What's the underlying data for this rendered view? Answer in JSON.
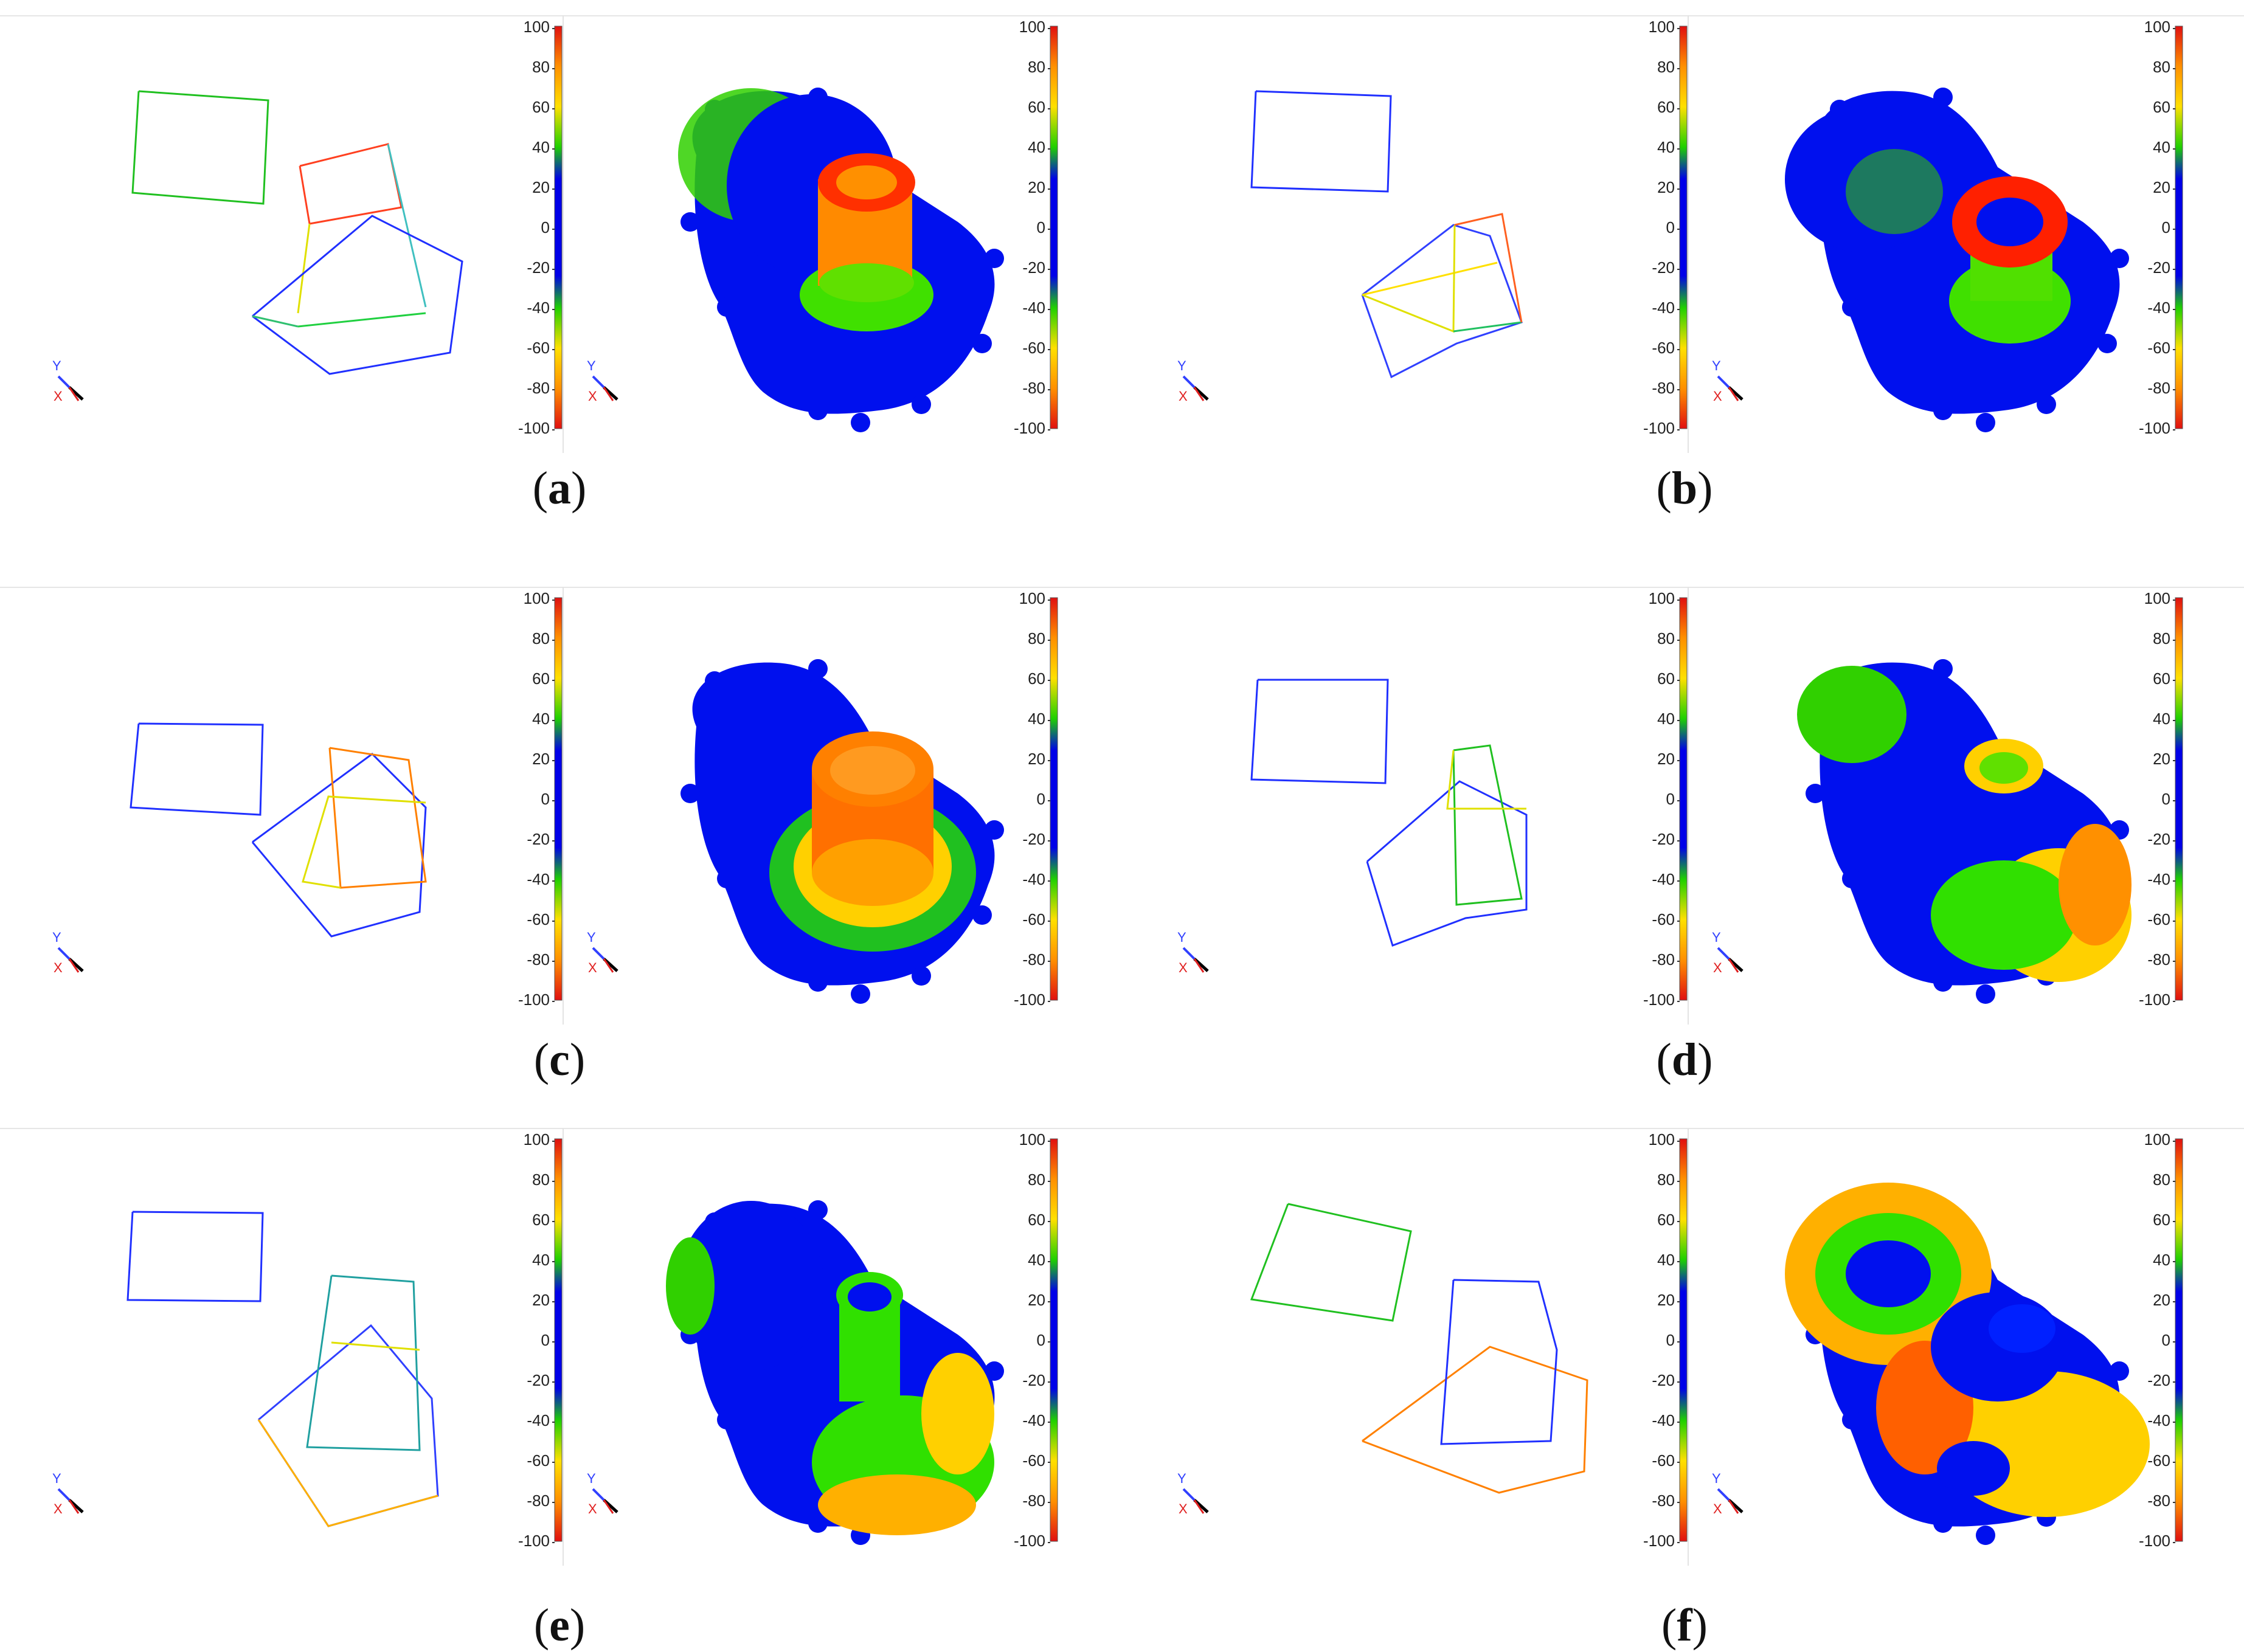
{
  "colorbar": {
    "ticks": [
      "100",
      "80",
      "60",
      "40",
      "20",
      "0",
      "-20",
      "-40",
      "-60",
      "-80",
      "-100"
    ],
    "colors": [
      "#ff2000",
      "#ffa000",
      "#ffe000",
      "#00d000",
      "#00a020",
      "#0000ee",
      "#0000ee",
      "#00a020",
      "#00d000",
      "#ffe000",
      "#ffa000",
      "#ff2000"
    ]
  },
  "axis_triad": {
    "y_label": "Y",
    "x_label": "X"
  },
  "panels": [
    {
      "id": "a",
      "caption_letter": "a"
    },
    {
      "id": "b",
      "caption_letter": "b"
    },
    {
      "id": "c",
      "caption_letter": "c"
    },
    {
      "id": "d",
      "caption_letter": "d"
    },
    {
      "id": "e",
      "caption_letter": "e"
    },
    {
      "id": "f",
      "caption_letter": "f"
    }
  ]
}
